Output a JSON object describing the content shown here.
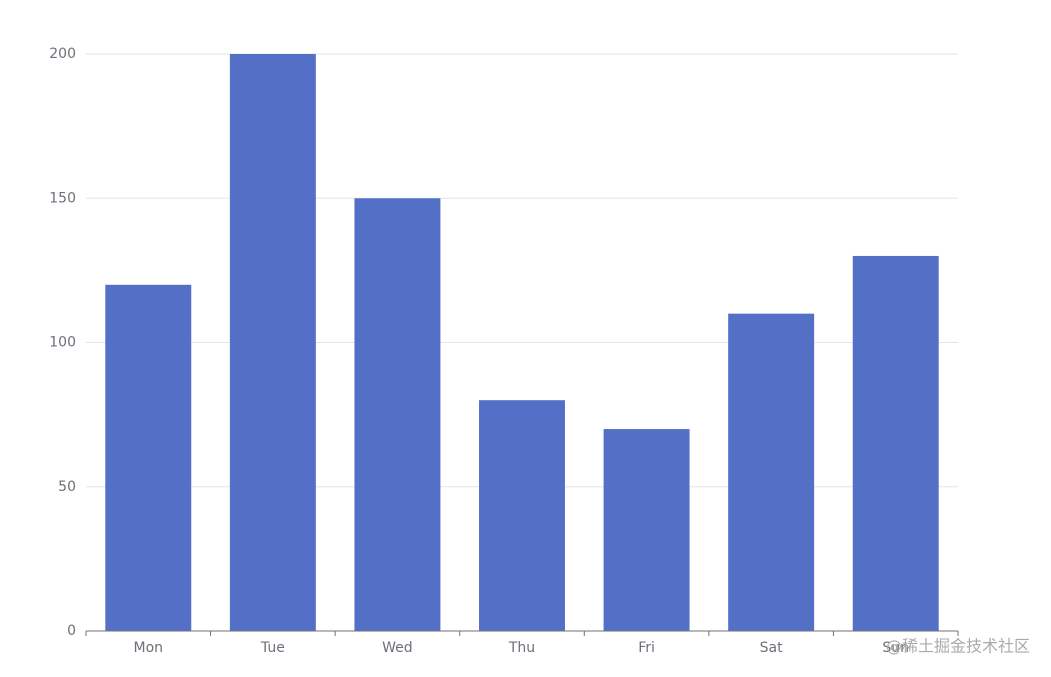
{
  "chart_data": {
    "type": "bar",
    "categories": [
      "Mon",
      "Tue",
      "Wed",
      "Thu",
      "Fri",
      "Sat",
      "Sun"
    ],
    "values": [
      120,
      200,
      150,
      80,
      70,
      110,
      130
    ],
    "color": "#5470c6",
    "ylim": [
      0,
      200
    ],
    "yticks": [
      0,
      50,
      100,
      150,
      200
    ],
    "grid": true,
    "watermark": "@稀土掘金技术社区"
  }
}
